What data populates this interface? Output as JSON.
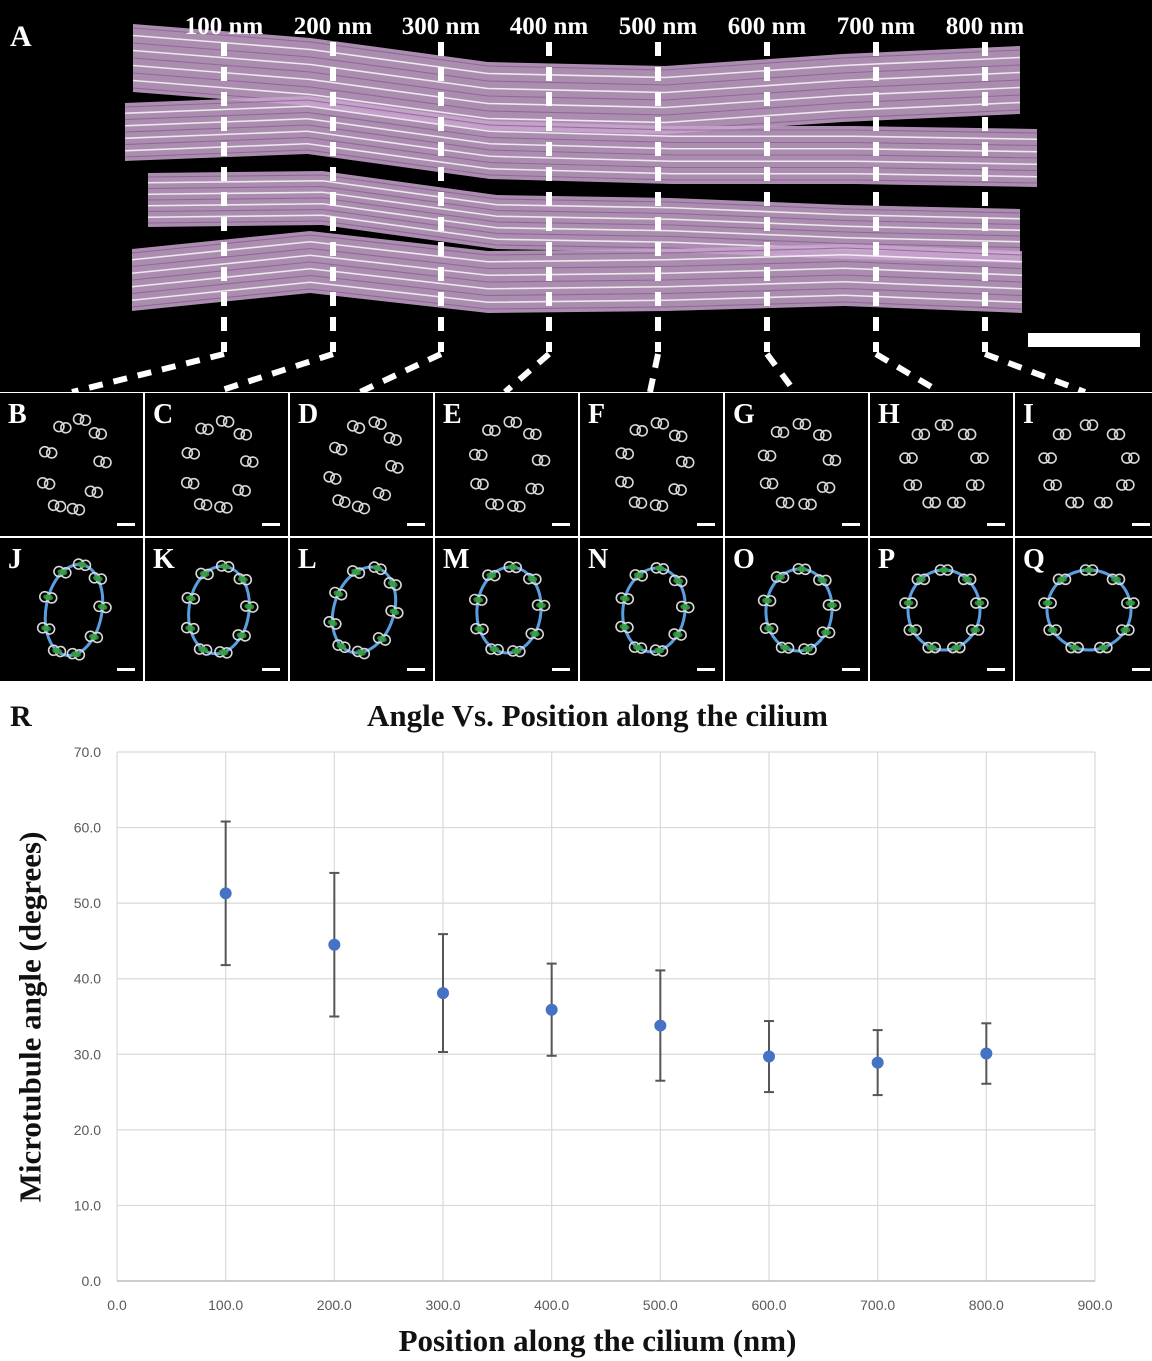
{
  "panel_a": {
    "letter": "A",
    "position_labels": [
      "100 nm",
      "200 nm",
      "300 nm",
      "400 nm",
      "500 nm",
      "600 nm",
      "700 nm",
      "800 nm"
    ],
    "render_color": "#c9a6cf"
  },
  "tiles_raw": [
    "B",
    "C",
    "D",
    "E",
    "F",
    "G",
    "H",
    "I"
  ],
  "tiles_fit": [
    "J",
    "K",
    "L",
    "M",
    "N",
    "O",
    "P",
    "Q"
  ],
  "colors": {
    "fit_line": "#5aa0e0",
    "doublet_fit": "#2e9a3a",
    "point": "#4472c4",
    "error_bar": "#555555"
  },
  "panel_r": {
    "letter": "R",
    "title": "Angle Vs. Position along the cilium",
    "xlabel": "Position along the cilium (nm)",
    "ylabel": "Microtubule angle (degrees)"
  },
  "chart_data": {
    "type": "scatter",
    "title": "Angle Vs. Position along the cilium",
    "xlabel": "Position along the cilium (nm)",
    "ylabel": "Microtubule angle (degrees)",
    "x": [
      100,
      200,
      300,
      400,
      500,
      600,
      700,
      800
    ],
    "y": [
      51.3,
      44.5,
      38.1,
      35.9,
      33.8,
      29.7,
      28.9,
      30.1
    ],
    "error": [
      9.5,
      9.5,
      7.8,
      6.1,
      7.3,
      4.7,
      4.3,
      4.0
    ],
    "xlim": [
      0,
      900
    ],
    "ylim": [
      0,
      70
    ],
    "xticks": [
      0,
      100,
      200,
      300,
      400,
      500,
      600,
      700,
      800,
      900
    ],
    "yticks": [
      0,
      10,
      20,
      30,
      40,
      50,
      60,
      70
    ],
    "xtick_labels": [
      "0.0",
      "100.0",
      "200.0",
      "300.0",
      "400.0",
      "500.0",
      "600.0",
      "700.0",
      "800.0",
      "900.0"
    ],
    "ytick_labels": [
      "0.0",
      "10.0",
      "20.0",
      "30.0",
      "40.0",
      "50.0",
      "60.0",
      "70.0"
    ],
    "grid": true,
    "legend": "none"
  }
}
